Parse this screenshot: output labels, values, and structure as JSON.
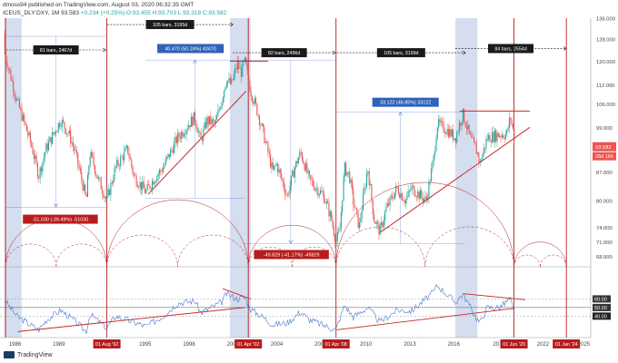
{
  "header": {
    "author_line": "dmoss94 published on TradingView.com, August 03, 2020 06:32:35 GMT",
    "symbol": "ICEUS_DLY:DXY, 1M",
    "last": "93.583",
    "change": "+0.234 (+0.25%)",
    "ohlc": "O:93.455 H:93.703 L:93.318 C:93.582"
  },
  "footer": {
    "brand": "TradingView"
  },
  "colors": {
    "candle_up": "#26a69a",
    "candle_down": "#ef5350",
    "trend": "#c62828",
    "vline": "#b71c1c",
    "shade": "#c5d3ea",
    "rsi": "#4a78c8",
    "measure": "#1e56b0",
    "measure_bg": "#2d62b8"
  },
  "chart_data": [
    {
      "type": "line",
      "title": "",
      "y_scale": "log",
      "ylim": [
        66,
        136
      ],
      "xlim": [
        "1985-08",
        "2025-09"
      ],
      "price_ticks": [
        "136.000",
        "128.000",
        "120.000",
        "112.000",
        "106.000",
        "99.000",
        "93.582",
        "87.000",
        "80.000",
        "74.000",
        "71.000",
        "68.000"
      ],
      "year_ticks": [
        "1986",
        "1989",
        "1995",
        "1998",
        "2001",
        "2004",
        "2007",
        "2010",
        "2013",
        "2016",
        "2019",
        "2022",
        "2025"
      ],
      "current_price": "93.582",
      "countdown": "28d 16h",
      "series": [
        {
          "values": [
            [
              "1985-01",
              130
            ],
            [
              "1985-06",
              126
            ],
            [
              "1986-06",
              107
            ],
            [
              "1987-06",
              94
            ],
            [
              "1987-12",
              86
            ],
            [
              "1988-06",
              93
            ],
            [
              "1989-06",
              101
            ],
            [
              "1990-01",
              97
            ],
            [
              "1990-06",
              92
            ],
            [
              "1990-12",
              84
            ],
            [
              "1991-03",
              80
            ],
            [
              "1991-06",
              92
            ],
            [
              "1992-01",
              85
            ],
            [
              "1992-08",
              80
            ],
            [
              "1993-03",
              88
            ],
            [
              "1994-01",
              93
            ],
            [
              "1994-06",
              86
            ],
            [
              "1995-04",
              82
            ],
            [
              "1995-10",
              85
            ],
            [
              "1996-06",
              88
            ],
            [
              "1997-06",
              96
            ],
            [
              "1998-08",
              102
            ],
            [
              "1999-01",
              95
            ],
            [
              "1999-06",
              101
            ],
            [
              "2000-01",
              100
            ],
            [
              "2000-06",
              107
            ],
            [
              "2000-10",
              114
            ],
            [
              "2001-02",
              112
            ],
            [
              "2001-07",
              119
            ],
            [
              "2001-10",
              116
            ],
            [
              "2002-01",
              120
            ],
            [
              "2002-06",
              110
            ],
            [
              "2002-12",
              103
            ],
            [
              "2003-06",
              95
            ],
            [
              "2003-12",
              87
            ],
            [
              "2004-03",
              89
            ],
            [
              "2004-12",
              81
            ],
            [
              "2005-06",
              88
            ],
            [
              "2005-11",
              92
            ],
            [
              "2006-06",
              85
            ],
            [
              "2007-06",
              81
            ],
            [
              "2007-12",
              76
            ],
            [
              "2008-04",
              71
            ],
            [
              "2008-07",
              73
            ],
            [
              "2008-11",
              88
            ],
            [
              "2009-03",
              86
            ],
            [
              "2009-06",
              80
            ],
            [
              "2009-11",
              74
            ],
            [
              "2010-06",
              88
            ],
            [
              "2010-11",
              76
            ],
            [
              "2011-04",
              73
            ],
            [
              "2011-09",
              78
            ],
            [
              "2012-06",
              83
            ],
            [
              "2013-01",
              80
            ],
            [
              "2013-06",
              83
            ],
            [
              "2014-06",
              80
            ],
            [
              "2014-12",
              90
            ],
            [
              "2015-03",
              100
            ],
            [
              "2015-12",
              98
            ],
            [
              "2016-06",
              96
            ],
            [
              "2016-12",
              103
            ],
            [
              "2017-06",
              96
            ],
            [
              "2017-12",
              92
            ],
            [
              "2018-02",
              89
            ],
            [
              "2018-08",
              96
            ],
            [
              "2019-06",
              97
            ],
            [
              "2019-12",
              97
            ],
            [
              "2020-03",
              102
            ],
            [
              "2020-06",
              97
            ],
            [
              "2020-07",
              93.6
            ]
          ]
        }
      ],
      "annotations": {
        "bar_spans": [
          "81 bars, 2467d",
          "105 bars, 3195d",
          "82 bars, 2496d",
          "105 bars, 3199d",
          "84 bars, 2554d"
        ],
        "measures": [
          "-51.030 (-39.49%) -51030",
          "40.470 (50.24%) 40470",
          "-49.829 (-41.17%) -49829",
          "33.122 (46.85%) 33122"
        ],
        "cycle_dates": [
          "01 Aug '92",
          "01 Apr '02",
          "01 Apr '08",
          "01 Jun '20",
          "01 Jan '24"
        ]
      }
    },
    {
      "type": "line",
      "title": "",
      "ylim": [
        15,
        90
      ],
      "levels": [
        "60.00",
        "50.00",
        "40.00"
      ],
      "series": [
        {
          "values": [
            [
              "1985-01",
              72
            ],
            [
              "1986-06",
              40
            ],
            [
              "1987-12",
              24
            ],
            [
              "1988-06",
              35
            ],
            [
              "1989-06",
              47
            ],
            [
              "1990-06",
              34
            ],
            [
              "1991-03",
              22
            ],
            [
              "1991-06",
              42
            ],
            [
              "1992-08",
              26
            ],
            [
              "1993-03",
              40
            ],
            [
              "1994-06",
              33
            ],
            [
              "1995-04",
              28
            ],
            [
              "1996-06",
              40
            ],
            [
              "1997-06",
              55
            ],
            [
              "1998-08",
              58
            ],
            [
              "1999-01",
              44
            ],
            [
              "2000-06",
              56
            ],
            [
              "2000-10",
              66
            ],
            [
              "2001-07",
              60
            ],
            [
              "2002-01",
              62
            ],
            [
              "2002-06",
              48
            ],
            [
              "2003-06",
              37
            ],
            [
              "2003-12",
              30
            ],
            [
              "2004-12",
              32
            ],
            [
              "2005-11",
              45
            ],
            [
              "2006-06",
              36
            ],
            [
              "2007-12",
              26
            ],
            [
              "2008-04",
              24
            ],
            [
              "2008-11",
              53
            ],
            [
              "2009-06",
              39
            ],
            [
              "2010-06",
              50
            ],
            [
              "2011-04",
              33
            ],
            [
              "2012-06",
              47
            ],
            [
              "2013-06",
              46
            ],
            [
              "2014-12",
              68
            ],
            [
              "2015-03",
              76
            ],
            [
              "2016-06",
              56
            ],
            [
              "2016-12",
              66
            ],
            [
              "2017-12",
              36
            ],
            [
              "2018-02",
              32
            ],
            [
              "2018-08",
              50
            ],
            [
              "2019-06",
              50
            ],
            [
              "2020-03",
              60
            ],
            [
              "2020-06",
              44
            ],
            [
              "2020-07",
              37
            ]
          ]
        }
      ]
    }
  ]
}
